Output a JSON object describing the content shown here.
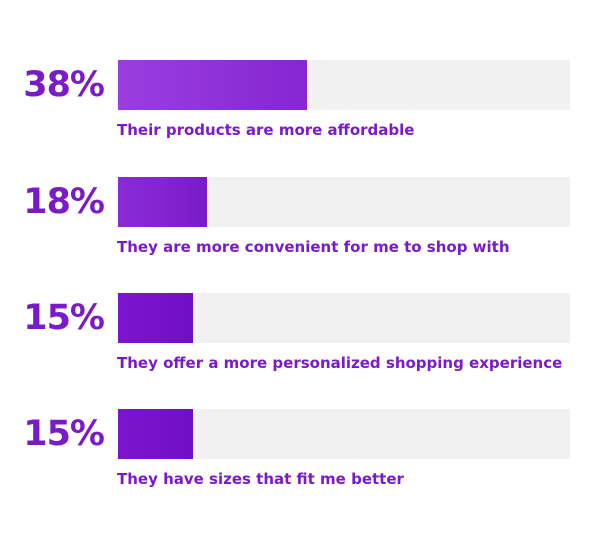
{
  "chart_data": {
    "type": "bar",
    "orientation": "horizontal",
    "xlim": [
      0,
      100
    ],
    "grid": false,
    "legend": "none",
    "categories": [
      "Their products are more affordable",
      "They are more convenient for me to shop with",
      "They offer a more personalized shopping experience",
      "They have sizes that fit me better"
    ],
    "values": [
      38,
      18,
      15,
      15
    ],
    "value_labels": [
      "38%",
      "18%",
      "15%",
      "15%"
    ],
    "colors": {
      "track": "#f1f1f1",
      "text": "#7a1bc8",
      "bar_fills": [
        [
          "#9a3ee0",
          "#8526d2"
        ],
        [
          "#8a2cd6",
          "#7a1bc8"
        ],
        [
          "#7d14cf",
          "#7010c4"
        ],
        [
          "#7d14cf",
          "#7010c4"
        ]
      ]
    }
  }
}
